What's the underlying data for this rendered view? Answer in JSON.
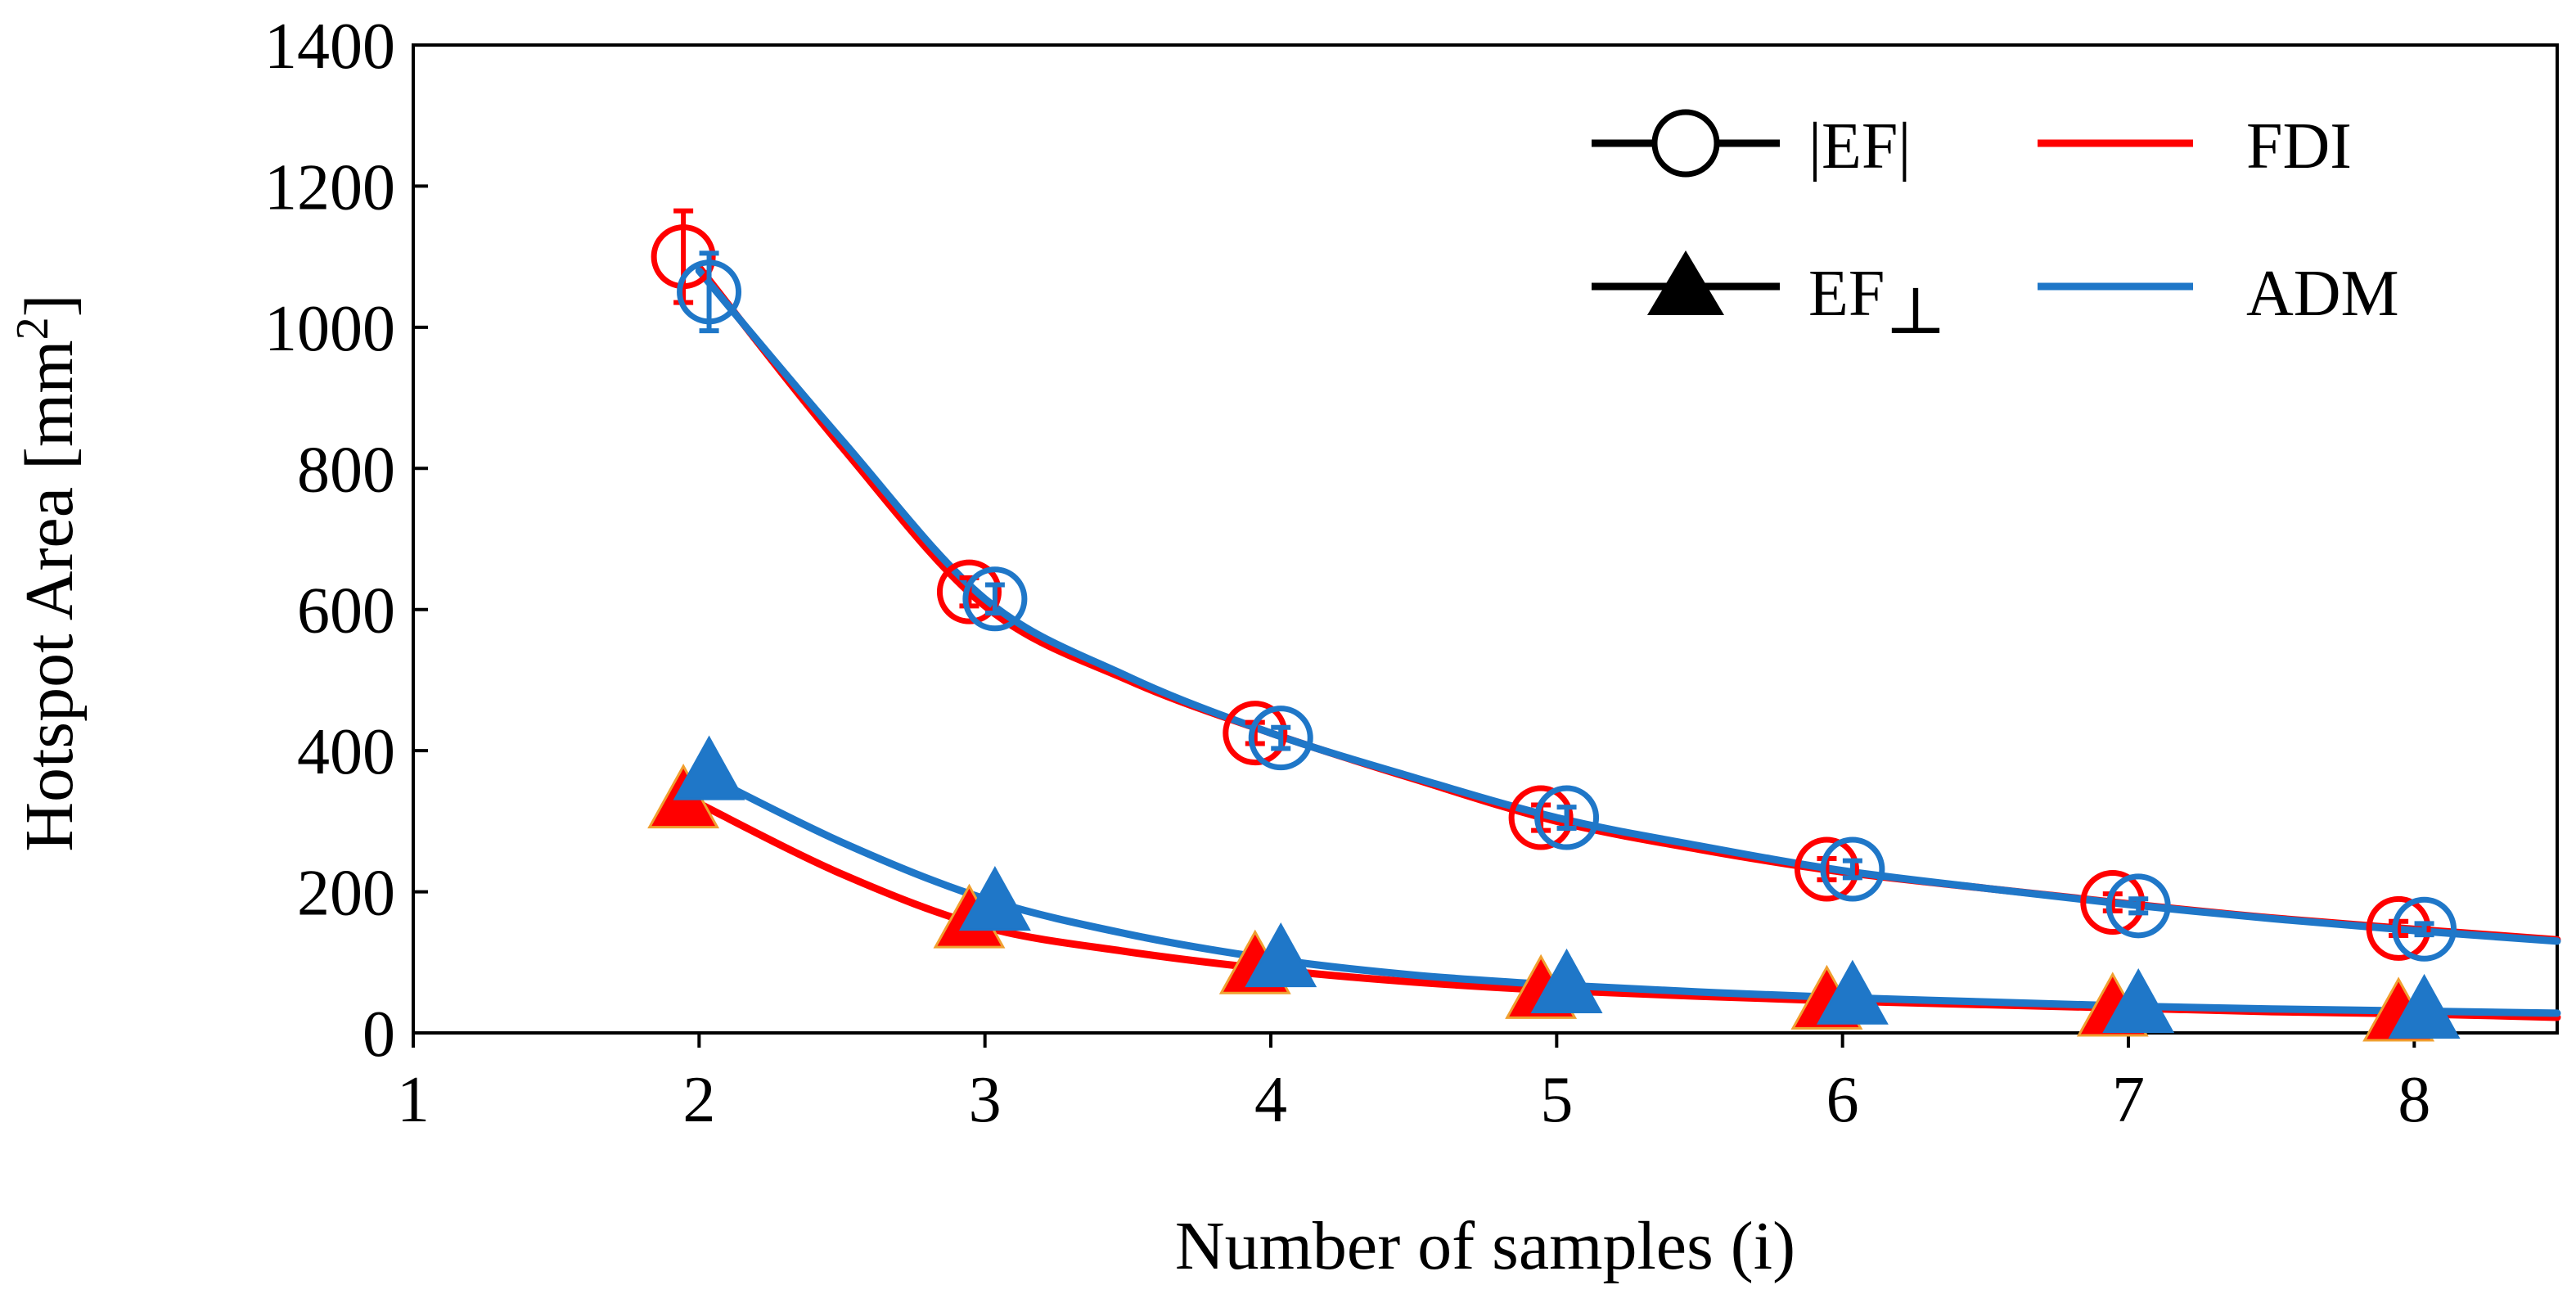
{
  "chart_data": {
    "type": "line",
    "xlabel": "Number of samples (i)",
    "ylabel": "Hotspot Area [mm²]",
    "ylabel_main": "Hotspot Area [mm",
    "ylabel_sup": "2",
    "ylabel_close": "]",
    "xlim": [
      1,
      8.5
    ],
    "ylim": [
      0,
      1400
    ],
    "x_ticks": [
      "1",
      "2",
      "3",
      "4",
      "5",
      "6",
      "7",
      "8"
    ],
    "y_ticks": [
      "0",
      "200",
      "400",
      "600",
      "800",
      "1000",
      "1200",
      "1400"
    ],
    "x": [
      2,
      3,
      4,
      5,
      6,
      7,
      8
    ],
    "legend": {
      "position": "top-right",
      "marker_items": [
        {
          "key": "EF_abs",
          "label": "|EF|",
          "marker": "circle"
        },
        {
          "key": "EF_perp",
          "label": "EF",
          "subscript": "⊥",
          "marker": "triangle"
        }
      ],
      "color_items": [
        {
          "key": "FDI",
          "label": "FDI",
          "color": "#ff0000"
        },
        {
          "key": "ADM",
          "label": "ADM",
          "color": "#1f77c8"
        }
      ]
    },
    "series": [
      {
        "name": "|EF| FDI",
        "method": "FDI",
        "metric": "|EF|",
        "marker": "circle",
        "color": "#ff0000",
        "values": [
          1100,
          625,
          425,
          305,
          232,
          185,
          148
        ],
        "error": [
          65,
          20,
          15,
          18,
          15,
          12,
          10
        ]
      },
      {
        "name": "|EF| ADM",
        "method": "ADM",
        "metric": "|EF|",
        "marker": "circle",
        "color": "#1f77c8",
        "values": [
          1050,
          615,
          418,
          305,
          232,
          180,
          147
        ],
        "error": [
          55,
          20,
          15,
          15,
          12,
          10,
          8
        ]
      },
      {
        "name": "EF⊥ FDI",
        "method": "FDI",
        "metric": "EF⊥",
        "marker": "triangle",
        "color": "#ff0000",
        "values": [
          330,
          160,
          95,
          60,
          45,
          35,
          28
        ],
        "error": [
          10,
          8,
          5,
          5,
          4,
          3,
          3
        ]
      },
      {
        "name": "EF⊥ ADM",
        "method": "ADM",
        "metric": "EF⊥",
        "marker": "triangle",
        "color": "#1f77c8",
        "values": [
          370,
          185,
          105,
          68,
          52,
          40,
          32
        ],
        "error": [
          10,
          8,
          5,
          5,
          4,
          3,
          3
        ]
      }
    ],
    "fit_curves": [
      {
        "name": "FDI |EF| fit",
        "color": "#ff0000",
        "points": [
          [
            2,
            1085
          ],
          [
            2.5,
            830
          ],
          [
            3,
            605
          ],
          [
            3.5,
            500
          ],
          [
            4,
            425
          ],
          [
            4.5,
            360
          ],
          [
            5,
            300
          ],
          [
            5.5,
            260
          ],
          [
            6,
            228
          ],
          [
            6.5,
            205
          ],
          [
            7,
            183
          ],
          [
            7.5,
            163
          ],
          [
            8,
            147
          ],
          [
            8.5,
            132
          ]
        ]
      },
      {
        "name": "ADM |EF| fit",
        "color": "#1f77c8",
        "points": [
          [
            2,
            1080
          ],
          [
            2.5,
            840
          ],
          [
            3,
            615
          ],
          [
            3.5,
            505
          ],
          [
            4,
            425
          ],
          [
            4.5,
            362
          ],
          [
            5,
            305
          ],
          [
            5.5,
            265
          ],
          [
            6,
            230
          ],
          [
            6.5,
            205
          ],
          [
            7,
            182
          ],
          [
            7.5,
            162
          ],
          [
            8,
            145
          ],
          [
            8.5,
            130
          ]
        ]
      },
      {
        "name": "FDI EF⊥ fit",
        "color": "#ff0000",
        "points": [
          [
            2,
            325
          ],
          [
            2.5,
            225
          ],
          [
            3,
            150
          ],
          [
            3.5,
            115
          ],
          [
            4,
            90
          ],
          [
            4.5,
            72
          ],
          [
            5,
            60
          ],
          [
            5.5,
            52
          ],
          [
            6,
            45
          ],
          [
            6.5,
            40
          ],
          [
            7,
            35
          ],
          [
            7.5,
            30
          ],
          [
            8,
            27
          ],
          [
            8.5,
            22
          ]
        ]
      },
      {
        "name": "ADM EF⊥ fit",
        "color": "#1f77c8",
        "points": [
          [
            2,
            370
          ],
          [
            2.5,
            270
          ],
          [
            3,
            190
          ],
          [
            3.5,
            140
          ],
          [
            4,
            105
          ],
          [
            4.5,
            82
          ],
          [
            5,
            68
          ],
          [
            5.5,
            58
          ],
          [
            6,
            50
          ],
          [
            6.5,
            44
          ],
          [
            7,
            38
          ],
          [
            7.5,
            34
          ],
          [
            8,
            31
          ],
          [
            8.5,
            28
          ]
        ]
      }
    ]
  }
}
